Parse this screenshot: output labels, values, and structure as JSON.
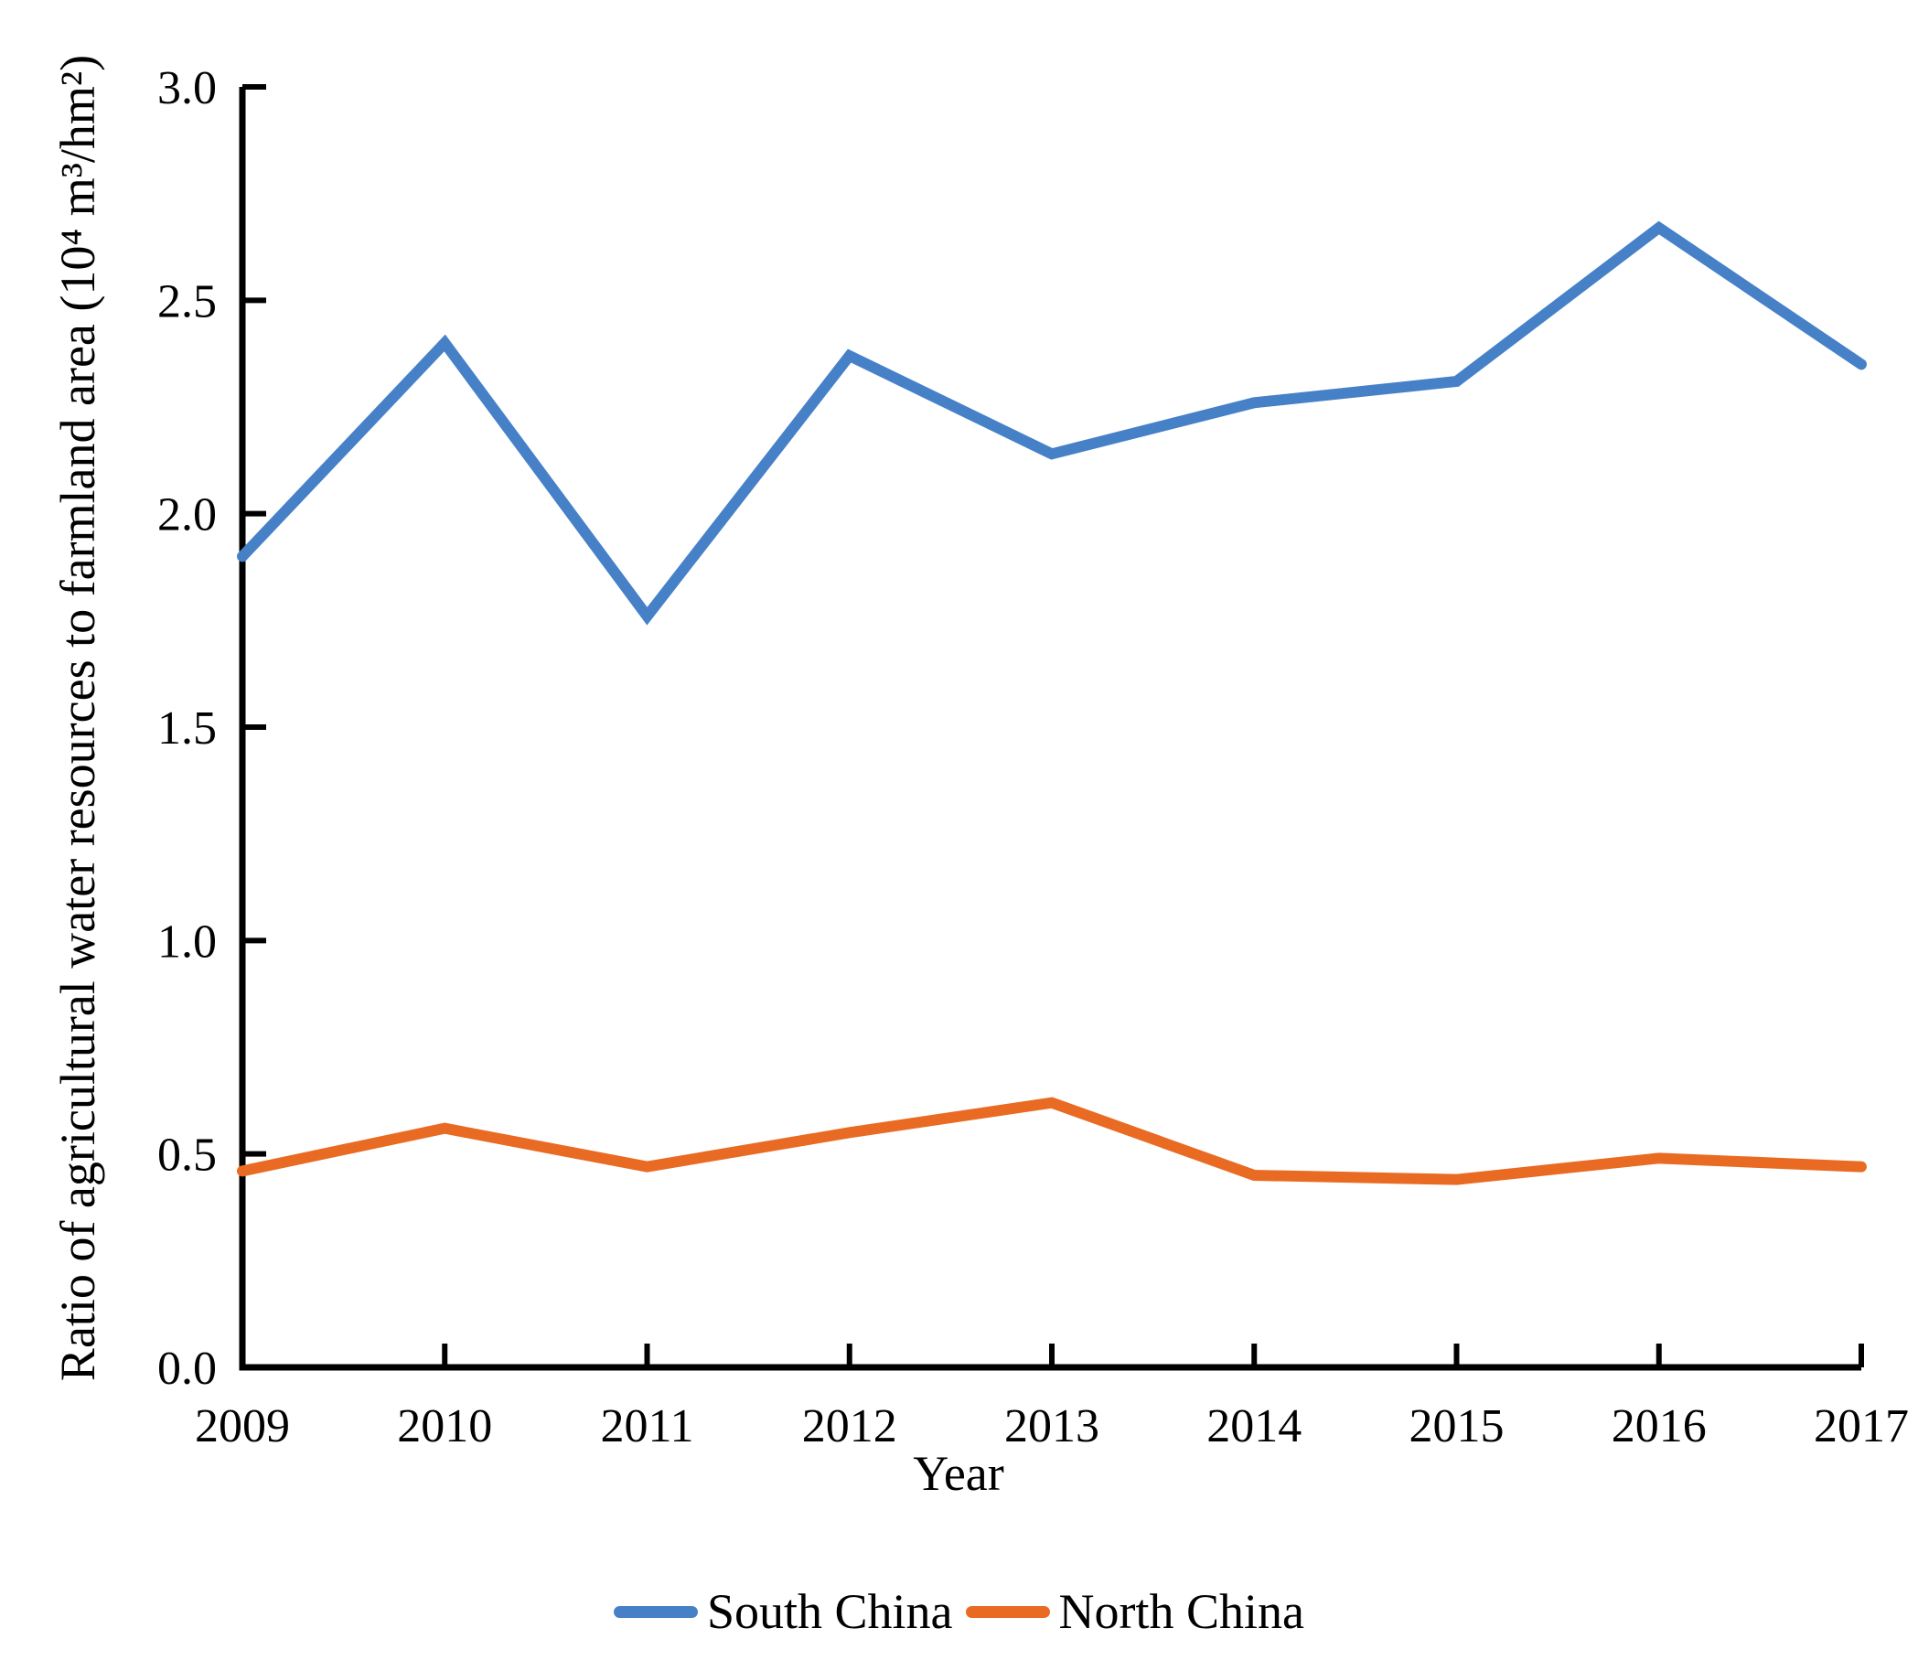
{
  "figure": {
    "background": "#FFFFFF"
  },
  "chart_data": {
    "type": "line",
    "title": "",
    "x_categories": [
      "2009",
      "2010",
      "2011",
      "2012",
      "2013",
      "2014",
      "2015",
      "2016",
      "2017"
    ],
    "xlabel": "Year",
    "ylabel": "Ratio of agricultural water resources to farmland area (10⁴ m³/hm²)",
    "ylim": [
      0.0,
      3.0
    ],
    "y_tick_values": [
      0.0,
      0.5,
      1.0,
      1.5,
      2.0,
      2.5,
      3.0
    ],
    "y_tick_labels": [
      "0.0",
      "0.5",
      "1.0",
      "1.5",
      "2.0",
      "2.5",
      "3.0"
    ],
    "grid": false,
    "legend_position": "bottom-center",
    "axis_color": "#000000",
    "text_color": "#000000",
    "series": [
      {
        "name": "South China",
        "color": "#4681C8",
        "values": [
          1.9,
          2.4,
          1.76,
          2.37,
          2.14,
          2.26,
          2.31,
          2.67,
          2.35
        ]
      },
      {
        "name": "North China",
        "color": "#E96B23",
        "values": [
          0.46,
          0.56,
          0.47,
          0.55,
          0.62,
          0.45,
          0.44,
          0.49,
          0.47
        ]
      }
    ]
  }
}
